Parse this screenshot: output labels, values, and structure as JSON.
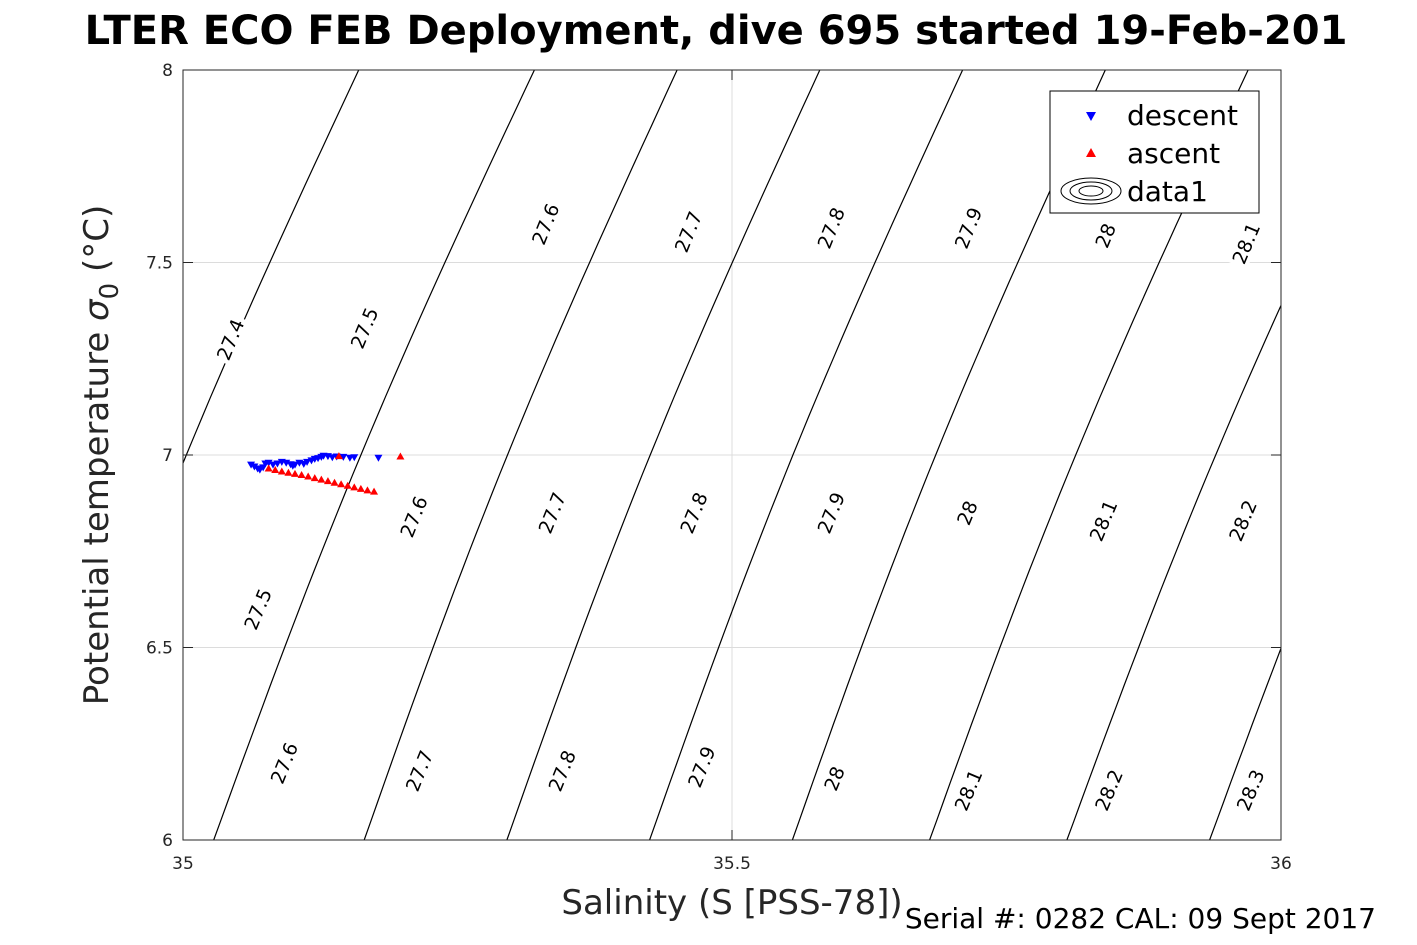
{
  "title": "LTER ECO FEB Deployment, dive 695 started 19-Feb-201",
  "footer": "Serial #: 0282  CAL: 09 Sept 2017",
  "chart_data": {
    "type": "scatter",
    "xlabel": "Salinity (S [PSS-78])",
    "ylabel_main": "Potential temperature ",
    "ylabel_sigma": "σ",
    "ylabel_sub": "0",
    "ylabel_unit": " (°C)",
    "xlim": [
      35,
      36
    ],
    "ylim": [
      6,
      8
    ],
    "xticks": [
      35,
      35.5,
      36
    ],
    "xtick_labels": [
      "35",
      "35.5",
      "36"
    ],
    "yticks": [
      6,
      6.5,
      7,
      7.5,
      8
    ],
    "ytick_labels": [
      "6",
      "6.5",
      "7",
      "7.5",
      "8"
    ],
    "grid": true,
    "legend_position": "top-right",
    "legend": [
      {
        "label": "descent",
        "marker": "triangle-down",
        "color": "#0000ff"
      },
      {
        "label": "ascent",
        "marker": "triangle-up",
        "color": "#ff0000"
      },
      {
        "label": "data1",
        "marker": "contour",
        "color": "#000000"
      }
    ],
    "series": [
      {
        "name": "descent",
        "color": "#0000ff",
        "marker": "triangle-down",
        "points": [
          [
            35.062,
            6.975
          ],
          [
            35.065,
            6.97
          ],
          [
            35.068,
            6.965
          ],
          [
            35.07,
            6.962
          ],
          [
            35.073,
            6.968
          ],
          [
            35.075,
            6.978
          ],
          [
            35.078,
            6.98
          ],
          [
            35.082,
            6.975
          ],
          [
            35.086,
            6.978
          ],
          [
            35.09,
            6.982
          ],
          [
            35.094,
            6.98
          ],
          [
            35.098,
            6.976
          ],
          [
            35.1,
            6.972
          ],
          [
            35.102,
            6.975
          ],
          [
            35.106,
            6.98
          ],
          [
            35.11,
            6.977
          ],
          [
            35.113,
            6.982
          ],
          [
            35.117,
            6.986
          ],
          [
            35.12,
            6.99
          ],
          [
            35.123,
            6.992
          ],
          [
            35.126,
            6.995
          ],
          [
            35.128,
            6.998
          ],
          [
            35.132,
            6.997
          ],
          [
            35.136,
            6.994
          ],
          [
            35.14,
            6.996
          ],
          [
            35.146,
            6.995
          ],
          [
            35.152,
            6.993
          ],
          [
            35.156,
            6.994
          ],
          [
            35.178,
            6.993
          ]
        ]
      },
      {
        "name": "ascent",
        "color": "#ff0000",
        "marker": "triangle-up",
        "points": [
          [
            35.078,
            6.965
          ],
          [
            35.084,
            6.961
          ],
          [
            35.09,
            6.957
          ],
          [
            35.096,
            6.954
          ],
          [
            35.102,
            6.951
          ],
          [
            35.108,
            6.948
          ],
          [
            35.114,
            6.944
          ],
          [
            35.12,
            6.94
          ],
          [
            35.126,
            6.936
          ],
          [
            35.132,
            6.932
          ],
          [
            35.138,
            6.928
          ],
          [
            35.144,
            6.924
          ],
          [
            35.15,
            6.92
          ],
          [
            35.156,
            6.916
          ],
          [
            35.162,
            6.912
          ],
          [
            35.168,
            6.908
          ],
          [
            35.174,
            6.905
          ],
          [
            35.142,
            6.997
          ],
          [
            35.198,
            6.996
          ]
        ]
      }
    ],
    "contours": [
      {
        "level": "27.4",
        "x_at_8": 35.16,
        "x_at_6": 34.87,
        "labels": [
          {
            "x": 35.043,
            "y": 7.3
          }
        ]
      },
      {
        "level": "27.5",
        "x_at_8": 35.32,
        "x_at_6": 35.028,
        "labels": [
          {
            "x": 35.165,
            "y": 7.33
          },
          {
            "x": 35.068,
            "y": 6.6
          }
        ]
      },
      {
        "level": "27.6",
        "x_at_8": 35.45,
        "x_at_6": 35.165,
        "labels": [
          {
            "x": 35.33,
            "y": 7.6
          },
          {
            "x": 35.21,
            "y": 6.84
          },
          {
            "x": 35.092,
            "y": 6.2
          }
        ]
      },
      {
        "level": "27.7",
        "x_at_8": 35.58,
        "x_at_6": 35.295,
        "labels": [
          {
            "x": 35.46,
            "y": 7.58
          },
          {
            "x": 35.336,
            "y": 6.85
          },
          {
            "x": 35.215,
            "y": 6.18
          }
        ]
      },
      {
        "level": "27.8",
        "x_at_8": 35.71,
        "x_at_6": 35.425,
        "labels": [
          {
            "x": 35.59,
            "y": 7.59
          },
          {
            "x": 35.465,
            "y": 6.85
          },
          {
            "x": 35.345,
            "y": 6.18
          }
        ]
      },
      {
        "level": "27.9",
        "x_at_8": 35.84,
        "x_at_6": 35.555,
        "labels": [
          {
            "x": 35.715,
            "y": 7.59
          },
          {
            "x": 35.59,
            "y": 6.85
          },
          {
            "x": 35.472,
            "y": 6.19
          }
        ]
      },
      {
        "level": "28",
        "x_at_8": 35.97,
        "x_at_6": 35.68,
        "labels": [
          {
            "x": 35.84,
            "y": 7.57
          },
          {
            "x": 35.714,
            "y": 6.85
          },
          {
            "x": 35.593,
            "y": 6.16
          }
        ]
      },
      {
        "level": "28.1",
        "x_at_8": 36.1,
        "x_at_6": 35.805,
        "labels": [
          {
            "x": 35.968,
            "y": 7.55
          },
          {
            "x": 35.838,
            "y": 6.83
          },
          {
            "x": 35.715,
            "y": 6.13
          }
        ]
      },
      {
        "level": "28.2",
        "x_at_8": 36.23,
        "x_at_6": 35.935,
        "labels": [
          {
            "x": 35.965,
            "y": 6.83
          },
          {
            "x": 35.843,
            "y": 6.13
          }
        ]
      },
      {
        "level": "28.3",
        "x_at_8": 36.36,
        "x_at_6": 36.065,
        "labels": [
          {
            "x": 35.972,
            "y": 6.13
          }
        ]
      }
    ]
  }
}
